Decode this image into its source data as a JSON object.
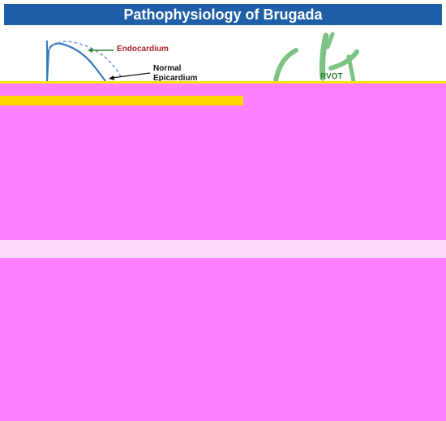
{
  "title": "Pathophysiology of Brugada",
  "labels": {
    "endocardium": "Endocardium",
    "normal_line1": "Normal",
    "normal_line2": "Epicardium",
    "rvot": "RVOT"
  },
  "colors": {
    "title_bg": "#1f5fa8",
    "endocardium_arrow": "#2e7d32",
    "endocardium_text": "#b0242b",
    "curve": "#3a78c2",
    "heart": "#7dc383",
    "corruption": "#ff80ff"
  }
}
